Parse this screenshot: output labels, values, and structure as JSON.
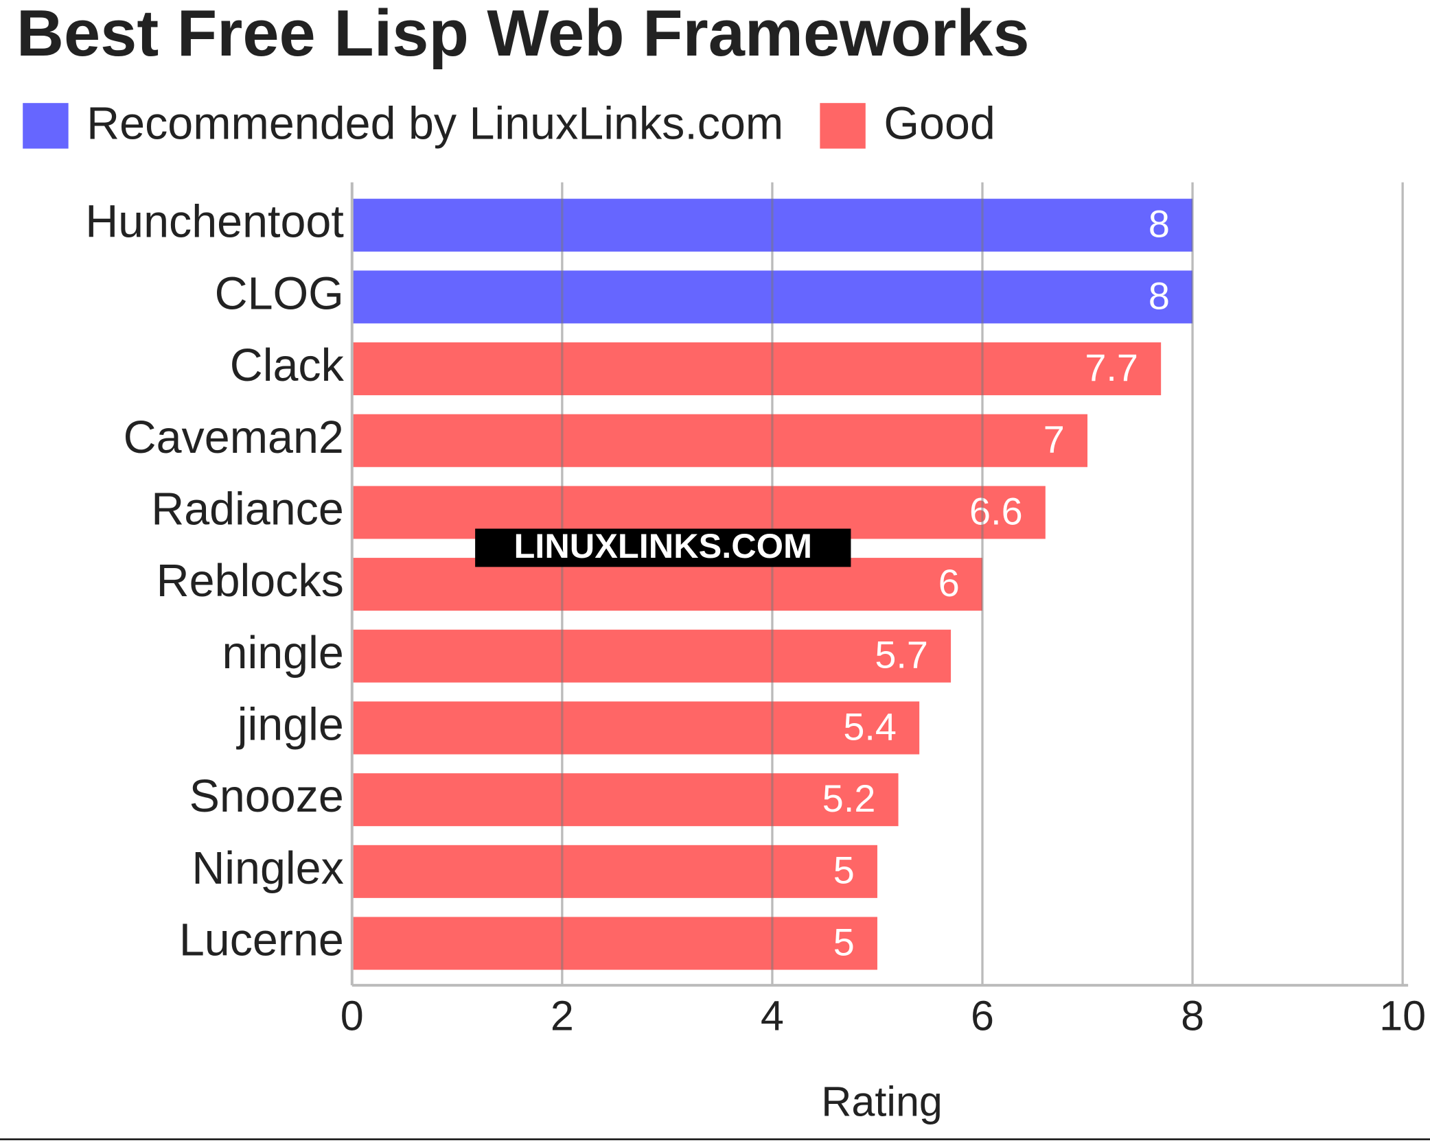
{
  "chart_data": {
    "type": "bar",
    "orientation": "horizontal",
    "title": "Best Free Lisp Web Frameworks",
    "x_label": "Rating",
    "watermark": "LINUXLINKS.COM",
    "categories": [
      "Hunchentoot",
      "CLOG",
      "Clack",
      "Caveman2",
      "Radiance",
      "Reblocks",
      "ningle",
      "jingle",
      "Snooze",
      "Ninglex",
      "Lucerne"
    ],
    "series": [
      {
        "name": "Recommended by LinuxLinks.com",
        "color": "#6666ff",
        "values": [
          8,
          8,
          null,
          null,
          null,
          null,
          null,
          null,
          null,
          null,
          null
        ]
      },
      {
        "name": "Good",
        "color": "#ff6666",
        "values": [
          null,
          null,
          7.7,
          7,
          6.6,
          6,
          5.7,
          5.4,
          5.2,
          5,
          5
        ]
      }
    ],
    "xlim": [
      0,
      10
    ],
    "xticks": [
      0,
      2,
      4,
      6,
      8,
      10
    ],
    "grid": true
  }
}
